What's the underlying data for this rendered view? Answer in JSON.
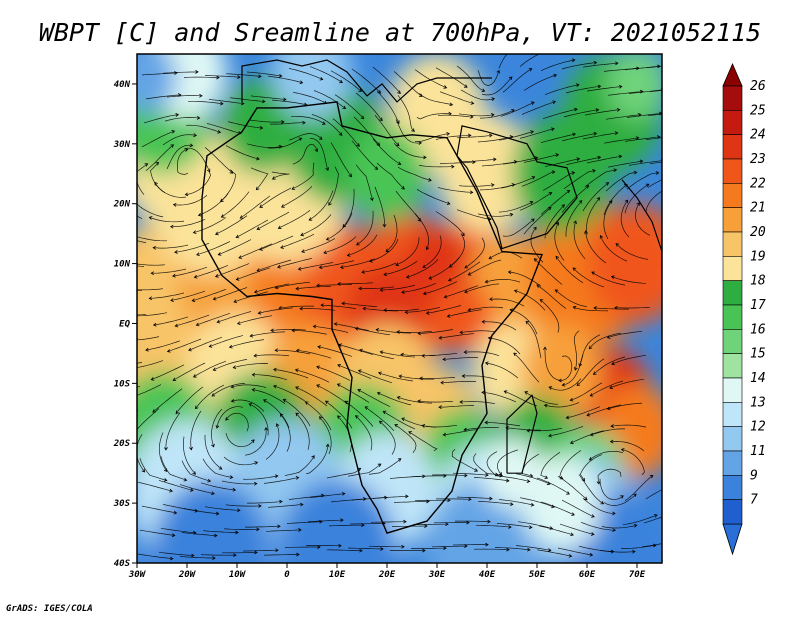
{
  "title": "WBPT [C] and Sreamline at 700hPa, VT: 2021052115",
  "credit": "GrADS: IGES/COLA",
  "map": {
    "lon_range": [
      -30,
      75
    ],
    "lat_range": [
      -40,
      45
    ],
    "lat_ticks": [
      {
        "value": 40,
        "label": "40N"
      },
      {
        "value": 30,
        "label": "30N"
      },
      {
        "value": 20,
        "label": "20N"
      },
      {
        "value": 10,
        "label": "10N"
      },
      {
        "value": 0,
        "label": "EQ"
      },
      {
        "value": -10,
        "label": "10S"
      },
      {
        "value": -20,
        "label": "20S"
      },
      {
        "value": -30,
        "label": "30S"
      },
      {
        "value": -40,
        "label": "40S"
      }
    ],
    "lon_ticks": [
      {
        "value": -30,
        "label": "30W"
      },
      {
        "value": -20,
        "label": "20W"
      },
      {
        "value": -10,
        "label": "10W"
      },
      {
        "value": 0,
        "label": "0"
      },
      {
        "value": 10,
        "label": "10E"
      },
      {
        "value": 20,
        "label": "20E"
      },
      {
        "value": 30,
        "label": "30E"
      },
      {
        "value": 40,
        "label": "40E"
      },
      {
        "value": 50,
        "label": "50E"
      },
      {
        "value": 60,
        "label": "60E"
      },
      {
        "value": 70,
        "label": "70E"
      }
    ]
  },
  "colorbar": {
    "labels": [
      "26",
      "25",
      "24",
      "23",
      "22",
      "21",
      "20",
      "19",
      "18",
      "17",
      "16",
      "15",
      "14",
      "13",
      "12",
      "11",
      "9",
      "7"
    ],
    "colors": [
      "#a50d0d",
      "#c41a10",
      "#e03515",
      "#f0561a",
      "#f57a1e",
      "#f7a03a",
      "#f8c468",
      "#fbe39a",
      "#2eae40",
      "#49c454",
      "#6fd37a",
      "#9ee39f",
      "#dff8f4",
      "#bfe5f8",
      "#93c8f0",
      "#63a4e6",
      "#3a82dc",
      "#1f5fcf"
    ],
    "top_color": "#8b0000",
    "bottom_color": "#2a6fd8"
  }
}
